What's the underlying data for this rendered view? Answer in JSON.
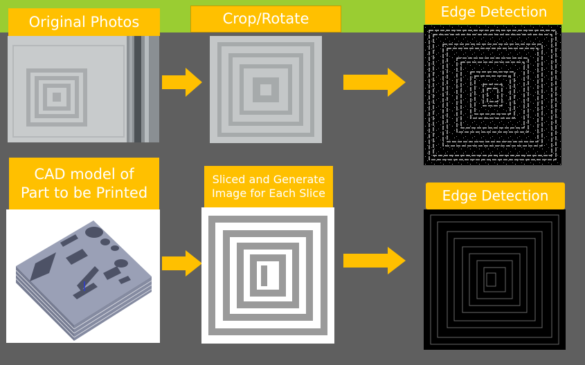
{
  "labels": {
    "original_photos": "Original Photos",
    "crop_rotate": "Crop/Rotate",
    "edge_detection_top": "Edge Detection",
    "cad_line1": "CAD model of",
    "cad_line2": "Part to be Printed",
    "sliced_line1": "Sliced and Generate",
    "sliced_line2": "Image for Each Slice",
    "edge_detection_bottom": "Edge Detection"
  },
  "colors": {
    "background": "#5f5f5f",
    "top_bar": "#9acd32",
    "label_fill": "#ffc000",
    "arrow": "#ffc000",
    "label_text": "#ffffff"
  }
}
